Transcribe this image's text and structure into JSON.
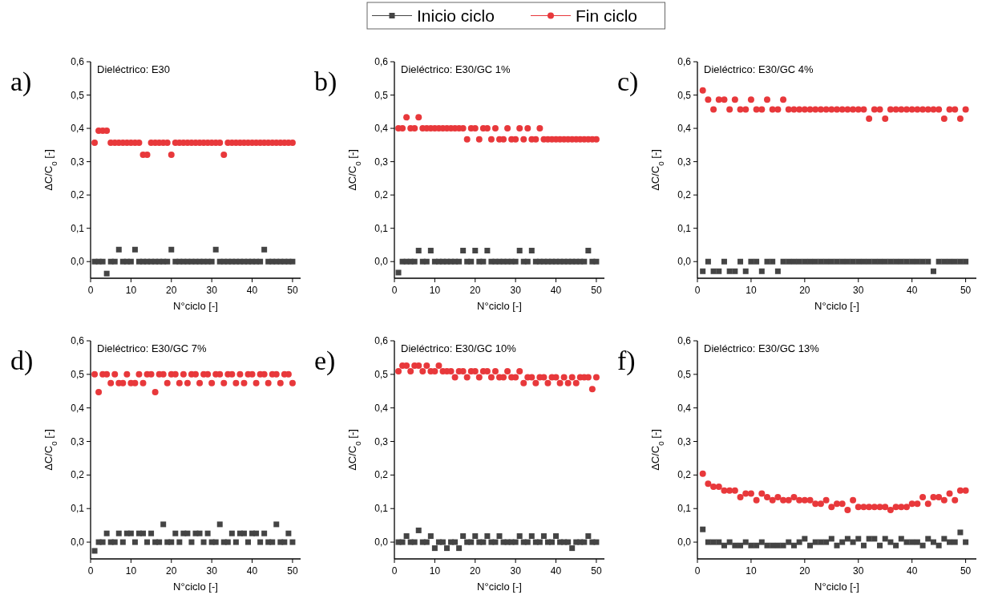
{
  "chart_data": [
    {
      "type": "scatter",
      "title": "a)",
      "subtitle": "Dieléctrico: E30",
      "xlabel": "N°ciclo [-]",
      "ylabel": "ΔC/C$_{0}$ [-]",
      "legend": "top",
      "x": [
        1,
        2,
        3,
        4,
        5,
        6,
        7,
        8,
        9,
        10,
        11,
        12,
        13,
        14,
        15,
        16,
        17,
        18,
        19,
        20,
        21,
        22,
        23,
        24,
        25,
        26,
        27,
        28,
        29,
        30,
        31,
        32,
        33,
        34,
        35,
        36,
        37,
        38,
        39,
        40,
        41,
        42,
        43,
        44,
        45,
        46,
        47,
        48,
        49,
        50
      ],
      "xlim": [
        0,
        52
      ],
      "xticks": [
        0,
        10,
        20,
        30,
        40,
        50
      ],
      "ylim": [
        -0.05,
        0.6
      ],
      "yticks": [
        {
          "value": 0,
          "label": "0,0"
        },
        {
          "value": 0.1,
          "label": "0,1"
        },
        {
          "value": 0.2,
          "label": "0,2"
        },
        {
          "value": 0.3,
          "label": "0,3"
        },
        {
          "value": 0.4,
          "label": "0,4"
        },
        {
          "value": 0.5,
          "label": "0,5"
        },
        {
          "value": 0.6,
          "label": "0,6"
        }
      ],
      "series": [
        {
          "name": "Inicio ciclo",
          "color": "#444444",
          "marker": "square",
          "values": [
            0,
            0,
            0,
            -0.036,
            0,
            0,
            0.036,
            0,
            0,
            0,
            0.036,
            0,
            0,
            0,
            0,
            0,
            0,
            0,
            0,
            0.036,
            0,
            0,
            0,
            0,
            0,
            0,
            0,
            0,
            0,
            0,
            0.036,
            0,
            0,
            0,
            0,
            0,
            0,
            0,
            0,
            0,
            0,
            0,
            0.036,
            0,
            0,
            0,
            0,
            0,
            0,
            0
          ]
        },
        {
          "name": "Fin ciclo",
          "color": "#e8383b",
          "marker": "circle",
          "values": [
            0.357,
            0.393,
            0.393,
            0.393,
            0.357,
            0.357,
            0.357,
            0.357,
            0.357,
            0.357,
            0.357,
            0.357,
            0.321,
            0.321,
            0.357,
            0.357,
            0.357,
            0.357,
            0.357,
            0.321,
            0.357,
            0.357,
            0.357,
            0.357,
            0.357,
            0.357,
            0.357,
            0.357,
            0.357,
            0.357,
            0.357,
            0.357,
            0.321,
            0.357,
            0.357,
            0.357,
            0.357,
            0.357,
            0.357,
            0.357,
            0.357,
            0.357,
            0.357,
            0.357,
            0.357,
            0.357,
            0.357,
            0.357,
            0.357,
            0.357
          ]
        }
      ]
    },
    {
      "type": "scatter",
      "title": "b)",
      "subtitle": "Dieléctrico: E30/GC 1%",
      "xlabel": "N°ciclo [-]",
      "ylabel": "ΔC/C$_{0}$ [-]",
      "x": [
        1,
        2,
        3,
        4,
        5,
        6,
        7,
        8,
        9,
        10,
        11,
        12,
        13,
        14,
        15,
        16,
        17,
        18,
        19,
        20,
        21,
        22,
        23,
        24,
        25,
        26,
        27,
        28,
        29,
        30,
        31,
        32,
        33,
        34,
        35,
        36,
        37,
        38,
        39,
        40,
        41,
        42,
        43,
        44,
        45,
        46,
        47,
        48,
        49,
        50
      ],
      "xlim": [
        0,
        52
      ],
      "xticks": [
        0,
        10,
        20,
        30,
        40,
        50
      ],
      "ylim": [
        -0.05,
        0.6
      ],
      "yticks": [
        {
          "value": 0,
          "label": "0,0"
        },
        {
          "value": 0.1,
          "label": "0,1"
        },
        {
          "value": 0.2,
          "label": "0,2"
        },
        {
          "value": 0.3,
          "label": "0,3"
        },
        {
          "value": 0.4,
          "label": "0,4"
        },
        {
          "value": 0.5,
          "label": "0,5"
        },
        {
          "value": 0.6,
          "label": "0,6"
        }
      ],
      "series": [
        {
          "color": "#444444",
          "marker": "square",
          "values": [
            -0.033,
            0,
            0,
            0,
            0,
            0.033,
            0,
            0,
            0.033,
            0,
            0,
            0,
            0,
            0,
            0,
            0,
            0.033,
            0,
            0,
            0.033,
            0,
            0,
            0.033,
            0,
            0,
            0,
            0,
            0,
            0,
            0,
            0.033,
            0,
            0,
            0.033,
            0,
            0,
            0,
            0,
            0,
            0,
            0,
            0,
            0,
            0,
            0,
            0,
            0,
            0.033,
            0,
            0
          ]
        },
        {
          "color": "#e8383b",
          "marker": "circle",
          "values": [
            0.4,
            0.4,
            0.433,
            0.4,
            0.4,
            0.433,
            0.4,
            0.4,
            0.4,
            0.4,
            0.4,
            0.4,
            0.4,
            0.4,
            0.4,
            0.4,
            0.4,
            0.367,
            0.4,
            0.4,
            0.367,
            0.4,
            0.4,
            0.367,
            0.4,
            0.367,
            0.367,
            0.4,
            0.367,
            0.367,
            0.4,
            0.367,
            0.4,
            0.367,
            0.367,
            0.4,
            0.367,
            0.367,
            0.367,
            0.367,
            0.367,
            0.367,
            0.367,
            0.367,
            0.367,
            0.367,
            0.367,
            0.367,
            0.367,
            0.367
          ]
        }
      ]
    },
    {
      "type": "scatter",
      "title": "c)",
      "subtitle": "Dieléctrico: E30/GC 4%",
      "xlabel": "N°ciclo [-]",
      "ylabel": "ΔC/C$_{0}$ [-]",
      "x": [
        1,
        2,
        3,
        4,
        5,
        6,
        7,
        8,
        9,
        10,
        11,
        12,
        13,
        14,
        15,
        16,
        17,
        18,
        19,
        20,
        21,
        22,
        23,
        24,
        25,
        26,
        27,
        28,
        29,
        30,
        31,
        32,
        33,
        34,
        35,
        36,
        37,
        38,
        39,
        40,
        41,
        42,
        43,
        44,
        45,
        46,
        47,
        48,
        49,
        50
      ],
      "xlim": [
        0,
        52
      ],
      "xticks": [
        0,
        10,
        20,
        30,
        40,
        50
      ],
      "ylim": [
        -0.05,
        0.6
      ],
      "yticks": [
        {
          "value": 0,
          "label": "0,0"
        },
        {
          "value": 0.1,
          "label": "0,1"
        },
        {
          "value": 0.2,
          "label": "0,2"
        },
        {
          "value": 0.3,
          "label": "0,3"
        },
        {
          "value": 0.4,
          "label": "0,4"
        },
        {
          "value": 0.5,
          "label": "0,5"
        },
        {
          "value": 0.6,
          "label": "0,6"
        }
      ],
      "series": [
        {
          "color": "#444444",
          "marker": "square",
          "values": [
            -0.029,
            0,
            -0.029,
            -0.029,
            0,
            -0.029,
            -0.029,
            0,
            -0.029,
            0,
            0,
            -0.029,
            0,
            0,
            -0.029,
            0,
            0,
            0,
            0,
            0,
            0,
            0,
            0,
            0,
            0,
            0,
            0,
            0,
            0,
            0,
            0,
            0,
            0,
            0,
            0,
            0,
            0,
            0,
            0,
            0,
            0,
            0,
            0,
            -0.029,
            0,
            0,
            0,
            0,
            0,
            0
          ]
        },
        {
          "color": "#e8383b",
          "marker": "circle",
          "values": [
            0.514,
            0.486,
            0.457,
            0.486,
            0.486,
            0.457,
            0.486,
            0.457,
            0.457,
            0.486,
            0.457,
            0.457,
            0.486,
            0.457,
            0.457,
            0.486,
            0.457,
            0.457,
            0.457,
            0.457,
            0.457,
            0.457,
            0.457,
            0.457,
            0.457,
            0.457,
            0.457,
            0.457,
            0.457,
            0.457,
            0.457,
            0.429,
            0.457,
            0.457,
            0.429,
            0.457,
            0.457,
            0.457,
            0.457,
            0.457,
            0.457,
            0.457,
            0.457,
            0.457,
            0.457,
            0.429,
            0.457,
            0.457,
            0.429,
            0.457
          ]
        }
      ]
    },
    {
      "type": "scatter",
      "title": "d)",
      "subtitle": "Dieléctrico: E30/GC 7%",
      "xlabel": "N°ciclo [-]",
      "ylabel": "ΔC/C$_{0}$ [-]",
      "x": [
        1,
        2,
        3,
        4,
        5,
        6,
        7,
        8,
        9,
        10,
        11,
        12,
        13,
        14,
        15,
        16,
        17,
        18,
        19,
        20,
        21,
        22,
        23,
        24,
        25,
        26,
        27,
        28,
        29,
        30,
        31,
        32,
        33,
        34,
        35,
        36,
        37,
        38,
        39,
        40,
        41,
        42,
        43,
        44,
        45,
        46,
        47,
        48,
        49,
        50
      ],
      "xlim": [
        0,
        52
      ],
      "xticks": [
        0,
        10,
        20,
        30,
        40,
        50
      ],
      "ylim": [
        -0.05,
        0.6
      ],
      "yticks": [
        {
          "value": 0,
          "label": "0,0"
        },
        {
          "value": 0.1,
          "label": "0,1"
        },
        {
          "value": 0.2,
          "label": "0,2"
        },
        {
          "value": 0.3,
          "label": "0,3"
        },
        {
          "value": 0.4,
          "label": "0,4"
        },
        {
          "value": 0.5,
          "label": "0,5"
        },
        {
          "value": 0.6,
          "label": "0,6"
        }
      ],
      "series": [
        {
          "color": "#444444",
          "marker": "square",
          "values": [
            -0.026,
            0,
            0,
            0.026,
            0,
            0,
            0.026,
            0,
            0.026,
            0.026,
            0,
            0.026,
            0.026,
            0,
            0.026,
            0,
            0,
            0.053,
            0,
            0,
            0.026,
            0,
            0.026,
            0.026,
            0,
            0.026,
            0.026,
            0,
            0.026,
            0,
            0,
            0.053,
            0,
            0,
            0.026,
            0,
            0.026,
            0.026,
            0,
            0.026,
            0.026,
            0,
            0.026,
            0,
            0,
            0.053,
            0,
            0,
            0.026,
            0
          ]
        },
        {
          "color": "#e8383b",
          "marker": "circle",
          "values": [
            0.5,
            0.447,
            0.5,
            0.5,
            0.474,
            0.5,
            0.474,
            0.474,
            0.5,
            0.474,
            0.474,
            0.5,
            0.474,
            0.5,
            0.5,
            0.447,
            0.5,
            0.5,
            0.474,
            0.5,
            0.5,
            0.474,
            0.5,
            0.474,
            0.5,
            0.5,
            0.474,
            0.5,
            0.5,
            0.474,
            0.5,
            0.5,
            0.474,
            0.5,
            0.5,
            0.474,
            0.5,
            0.474,
            0.5,
            0.5,
            0.474,
            0.5,
            0.5,
            0.474,
            0.5,
            0.5,
            0.474,
            0.5,
            0.5,
            0.474
          ]
        }
      ]
    },
    {
      "type": "scatter",
      "title": "e)",
      "subtitle": "Dieléctrico: E30/GC 10%",
      "xlabel": "N°ciclo [-]",
      "ylabel": "ΔC/C$_{0}$ [-]",
      "x": [
        1,
        2,
        3,
        4,
        5,
        6,
        7,
        8,
        9,
        10,
        11,
        12,
        13,
        14,
        15,
        16,
        17,
        18,
        19,
        20,
        21,
        22,
        23,
        24,
        25,
        26,
        27,
        28,
        29,
        30,
        31,
        32,
        33,
        34,
        35,
        36,
        37,
        38,
        39,
        40,
        41,
        42,
        43,
        44,
        45,
        46,
        47,
        48,
        49,
        50
      ],
      "xlim": [
        0,
        52
      ],
      "xticks": [
        0,
        10,
        20,
        30,
        40,
        50
      ],
      "ylim": [
        -0.05,
        0.6
      ],
      "yticks": [
        {
          "value": 0,
          "label": "0,0"
        },
        {
          "value": 0.1,
          "label": "0,1"
        },
        {
          "value": 0.2,
          "label": "0,2"
        },
        {
          "value": 0.3,
          "label": "0,3"
        },
        {
          "value": 0.4,
          "label": "0,4"
        },
        {
          "value": 0.5,
          "label": "0,5"
        },
        {
          "value": 0.6,
          "label": "0,6"
        }
      ],
      "series": [
        {
          "color": "#444444",
          "marker": "square",
          "values": [
            0,
            0,
            0.018,
            0,
            0,
            0.035,
            0,
            0,
            0.018,
            -0.018,
            0,
            0,
            -0.018,
            0,
            0,
            -0.018,
            0.018,
            0,
            0,
            0.018,
            0,
            0,
            0.018,
            0,
            0,
            0.018,
            0,
            0,
            0,
            0,
            0.018,
            0,
            0,
            0.018,
            0,
            0,
            0.018,
            0,
            0,
            0.018,
            0,
            0,
            0,
            -0.018,
            0,
            0,
            0,
            0.018,
            0,
            0
          ]
        },
        {
          "color": "#e8383b",
          "marker": "circle",
          "values": [
            0.509,
            0.526,
            0.526,
            0.509,
            0.526,
            0.526,
            0.509,
            0.526,
            0.509,
            0.509,
            0.526,
            0.509,
            0.509,
            0.509,
            0.491,
            0.509,
            0.509,
            0.491,
            0.509,
            0.509,
            0.491,
            0.509,
            0.509,
            0.491,
            0.509,
            0.491,
            0.491,
            0.509,
            0.491,
            0.491,
            0.509,
            0.474,
            0.491,
            0.491,
            0.474,
            0.491,
            0.491,
            0.474,
            0.491,
            0.491,
            0.474,
            0.491,
            0.474,
            0.491,
            0.474,
            0.491,
            0.491,
            0.491,
            0.456,
            0.491
          ]
        }
      ]
    },
    {
      "type": "scatter",
      "title": "f)",
      "subtitle": "Dieléctrico: E30/GC 13%",
      "xlabel": "N°ciclo [-]",
      "ylabel": "ΔC/C$_{0}$ [-]",
      "x": [
        1,
        2,
        3,
        4,
        5,
        6,
        7,
        8,
        9,
        10,
        11,
        12,
        13,
        14,
        15,
        16,
        17,
        18,
        19,
        20,
        21,
        22,
        23,
        24,
        25,
        26,
        27,
        28,
        29,
        30,
        31,
        32,
        33,
        34,
        35,
        36,
        37,
        38,
        39,
        40,
        41,
        42,
        43,
        44,
        45,
        46,
        47,
        48,
        49,
        50
      ],
      "xlim": [
        0,
        52
      ],
      "xticks": [
        0,
        10,
        20,
        30,
        40,
        50
      ],
      "ylim": [
        -0.05,
        0.6
      ],
      "yticks": [
        {
          "value": 0,
          "label": "0,0"
        },
        {
          "value": 0.1,
          "label": "0,1"
        },
        {
          "value": 0.2,
          "label": "0,2"
        },
        {
          "value": 0.3,
          "label": "0,3"
        },
        {
          "value": 0.4,
          "label": "0,4"
        },
        {
          "value": 0.5,
          "label": "0,5"
        },
        {
          "value": 0.6,
          "label": "0,6"
        }
      ],
      "series": [
        {
          "color": "#444444",
          "marker": "square",
          "values": [
            0.038,
            0,
            0,
            0,
            -0.01,
            0,
            -0.01,
            -0.01,
            0,
            -0.01,
            -0.01,
            0,
            -0.01,
            -0.01,
            -0.01,
            -0.01,
            0,
            -0.01,
            0,
            0.01,
            -0.01,
            0,
            0,
            0,
            0.01,
            -0.01,
            0,
            0.01,
            0,
            0.01,
            -0.01,
            0.01,
            0.01,
            -0.01,
            0.01,
            0,
            -0.01,
            0.01,
            0,
            0,
            0,
            -0.01,
            0.01,
            0,
            -0.01,
            0.01,
            0,
            0,
            0.029,
            0
          ]
        },
        {
          "color": "#e8383b",
          "marker": "circle",
          "values": [
            0.204,
            0.174,
            0.165,
            0.165,
            0.154,
            0.154,
            0.154,
            0.134,
            0.145,
            0.145,
            0.125,
            0.145,
            0.134,
            0.125,
            0.134,
            0.125,
            0.125,
            0.134,
            0.125,
            0.125,
            0.125,
            0.114,
            0.114,
            0.125,
            0.105,
            0.114,
            0.114,
            0.096,
            0.125,
            0.105,
            0.105,
            0.105,
            0.105,
            0.105,
            0.105,
            0.096,
            0.105,
            0.105,
            0.105,
            0.114,
            0.114,
            0.134,
            0.114,
            0.134,
            0.134,
            0.125,
            0.145,
            0.125,
            0.154,
            0.154
          ]
        }
      ]
    }
  ]
}
